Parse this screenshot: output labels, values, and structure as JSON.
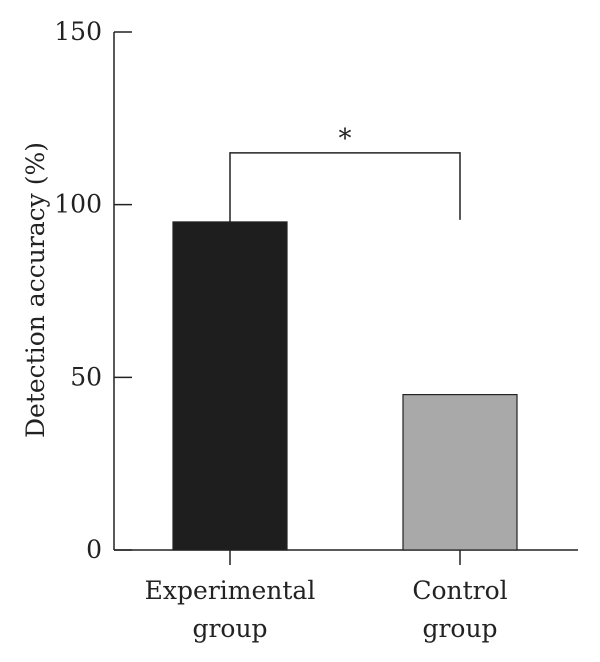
{
  "chart_data": {
    "type": "bar",
    "ylabel": "Detection accuracy (%)",
    "ylim": [
      0,
      150
    ],
    "yticks": [
      0,
      50,
      100,
      150
    ],
    "grid": false,
    "categories": [
      {
        "lines": [
          "Experimental",
          "group"
        ]
      },
      {
        "lines": [
          "Control",
          "group"
        ]
      }
    ],
    "values": [
      95,
      45
    ],
    "bar_colors": [
      "#1e1e1e",
      "#a9a9a9"
    ],
    "significance": {
      "between": [
        0,
        1
      ],
      "label": "*",
      "level": 115
    }
  }
}
